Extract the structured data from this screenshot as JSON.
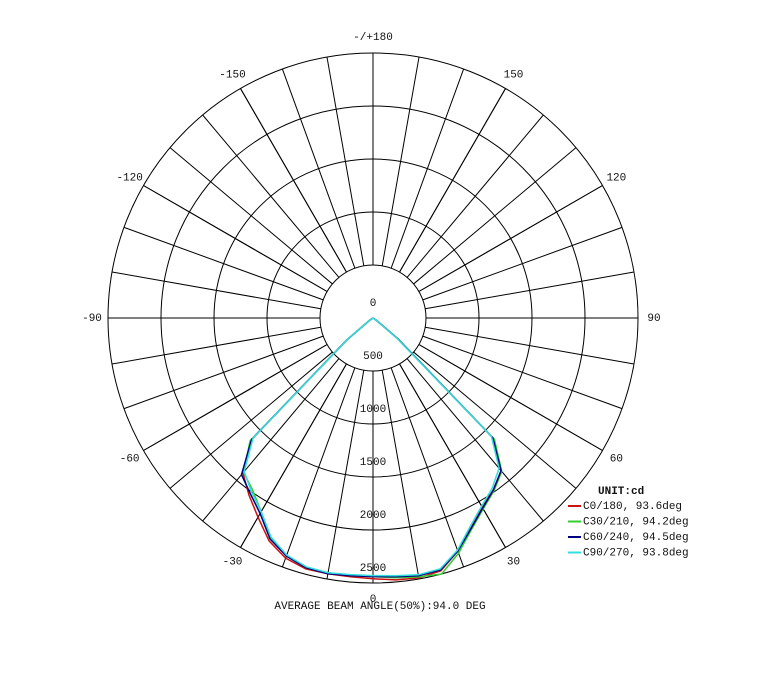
{
  "chart_data": {
    "type": "polar",
    "theta": [
      -60,
      -55,
      -50,
      -45,
      -40,
      -35,
      -30,
      -25,
      -20,
      -15,
      -10,
      -5,
      0,
      5,
      10,
      15,
      20,
      25,
      30,
      35,
      40,
      45,
      50,
      55,
      60
    ],
    "series": [
      {
        "name": "C0/180, 93.6deg",
        "color": "#cc1111",
        "values": [
          0,
          40,
          320,
          1630,
          1910,
          2040,
          2170,
          2320,
          2410,
          2450,
          2450,
          2450,
          2460,
          2480,
          2490,
          2470,
          2340,
          2180,
          2060,
          1980,
          1880,
          1600,
          300,
          40,
          0
        ]
      },
      {
        "name": "C30/210, 94.2deg",
        "color": "#33cc33",
        "values": [
          0,
          40,
          330,
          1640,
          1900,
          1980,
          2110,
          2290,
          2390,
          2440,
          2440,
          2440,
          2440,
          2460,
          2480,
          2500,
          2360,
          2200,
          2080,
          1990,
          1890,
          1620,
          310,
          40,
          0
        ]
      },
      {
        "name": "C60/240, 94.5deg",
        "color": "#000080",
        "values": [
          0,
          40,
          320,
          1620,
          1930,
          2020,
          2130,
          2300,
          2390,
          2440,
          2450,
          2440,
          2440,
          2450,
          2470,
          2460,
          2340,
          2190,
          2070,
          1980,
          1880,
          1600,
          300,
          40,
          0
        ]
      },
      {
        "name": "C90/270, 93.8deg",
        "color": "#33dddd",
        "values": [
          0,
          40,
          310,
          1600,
          1890,
          2000,
          2110,
          2280,
          2380,
          2430,
          2440,
          2430,
          2430,
          2440,
          2460,
          2450,
          2330,
          2170,
          2050,
          1960,
          1850,
          1580,
          290,
          40,
          0
        ]
      }
    ],
    "rlim": [
      0,
      2500
    ],
    "rticks": [
      0,
      500,
      1000,
      1500,
      2000,
      2500
    ],
    "thetaticks": [
      {
        "value": 180,
        "label": "-/+180"
      },
      150,
      120,
      90,
      60,
      30,
      0,
      -30,
      -60,
      -90,
      -120,
      -150
    ],
    "legend_title": "UNIT:cd",
    "footer": "AVERAGE BEAM ANGLE(50%):94.0 DEG",
    "grid": true
  }
}
